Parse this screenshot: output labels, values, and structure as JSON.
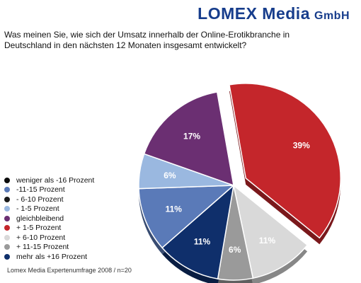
{
  "header": {
    "brand_main": "LOMEX Media",
    "brand_suffix": "GmbH",
    "question": "Was meinen Sie, wie sich der Umsatz innerhalb der Online-Erotikbranche in Deutschland in den nächsten 12 Monaten insgesamt entwickelt?"
  },
  "footer": {
    "source": "Lomex Media Expertenumfrage 2008 / n=20"
  },
  "chart_data": {
    "type": "pie",
    "title": "",
    "legend_position": "left",
    "categories": [
      "weniger als -16 Prozent",
      "-11-15 Prozent",
      "- 6-10 Prozent",
      "- 1-5 Prozent",
      "gleichbleibend",
      "+ 1-5 Prozent",
      "+ 6-10 Prozent",
      "+ 11-15 Prozent",
      "mehr als +16 Prozent"
    ],
    "colors": [
      "#0b0b0b",
      "#5a7ab8",
      "#1a1a1a",
      "#9ab8e0",
      "#6b2f72",
      "#c4262b",
      "#d9d9d9",
      "#9a9a9a",
      "#0f2f6b"
    ],
    "slices": [
      {
        "name": "+ 1-5 Prozent",
        "value": 39,
        "label": "39%",
        "color": "#c4262b",
        "label_color": "#ffffff",
        "exploded": true
      },
      {
        "name": "+ 6-10 Prozent",
        "value": 11,
        "label": "11%",
        "color": "#d9d9d9",
        "label_color": "#ffffff",
        "exploded": false
      },
      {
        "name": "+ 11-15 Prozent",
        "value": 6,
        "label": "6%",
        "color": "#9a9a9a",
        "label_color": "#ffffff",
        "exploded": false
      },
      {
        "name": "mehr als +16 Prozent",
        "value": 11,
        "label": "11%",
        "color": "#0f2f6b",
        "label_color": "#ffffff",
        "exploded": false
      },
      {
        "name": "-11-15 Prozent",
        "value": 11,
        "label": "11%",
        "color": "#5a7ab8",
        "label_color": "#ffffff",
        "exploded": false
      },
      {
        "name": "- 1-5 Prozent",
        "value": 6,
        "label": "6%",
        "color": "#9ab8e0",
        "label_color": "#ffffff",
        "exploded": false
      },
      {
        "name": "gleichbleibend",
        "value": 17,
        "label": "17%",
        "color": "#6b2f72",
        "label_color": "#ffffff",
        "exploded": false
      }
    ]
  }
}
